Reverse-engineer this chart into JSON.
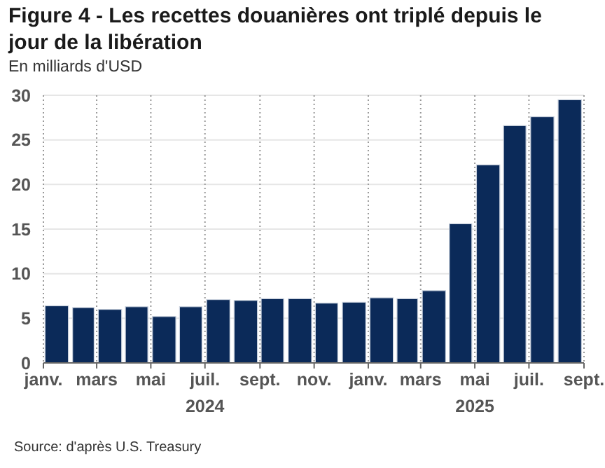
{
  "chart_data": {
    "type": "bar",
    "title": "Figure 4 - Les recettes douanières ont triplé depuis le jour de la libération",
    "subtitle": "En milliards d'USD",
    "x": [
      "2024-01-16",
      "2024-02-15",
      "2024-03-16",
      "2024-04-15",
      "2024-05-16",
      "2024-06-15",
      "2024-07-16",
      "2024-08-16",
      "2024-09-15",
      "2024-10-16",
      "2024-11-15",
      "2024-12-16",
      "2025-01-16",
      "2025-02-14",
      "2025-03-16",
      "2025-04-15",
      "2025-05-16",
      "2025-06-15",
      "2025-07-16",
      "2025-08-16"
    ],
    "values": [
      6.4,
      6.2,
      6.0,
      6.3,
      5.2,
      6.3,
      7.1,
      7.0,
      7.2,
      7.2,
      6.7,
      6.8,
      7.3,
      7.2,
      8.1,
      15.6,
      22.2,
      26.6,
      27.6,
      29.5
    ],
    "color": "#0b2a59",
    "xlim": [
      "2024-01",
      "2025-09"
    ],
    "xticks": [
      {
        "value": "2024-01",
        "label": "janv."
      },
      {
        "value": "2024-03",
        "label": "mars"
      },
      {
        "value": "2024-05",
        "label": "mai"
      },
      {
        "value": "2024-07",
        "label": "juil.\n2024"
      },
      {
        "value": "2024-09",
        "label": "sept."
      },
      {
        "value": "2024-11",
        "label": "nov."
      },
      {
        "value": "2025-01",
        "label": "janv."
      },
      {
        "value": "2025-03",
        "label": "mars"
      },
      {
        "value": "2025-05",
        "label": "mai\n2025"
      },
      {
        "value": "2025-07",
        "label": "juil."
      },
      {
        "value": "2025-09",
        "label": "sept."
      }
    ],
    "ylim": [
      0,
      30
    ],
    "yticks": [
      0,
      5,
      10,
      15,
      20,
      25,
      30
    ],
    "grid": true,
    "annotations": [
      "Source: d'après U.S. Treasury"
    ]
  }
}
